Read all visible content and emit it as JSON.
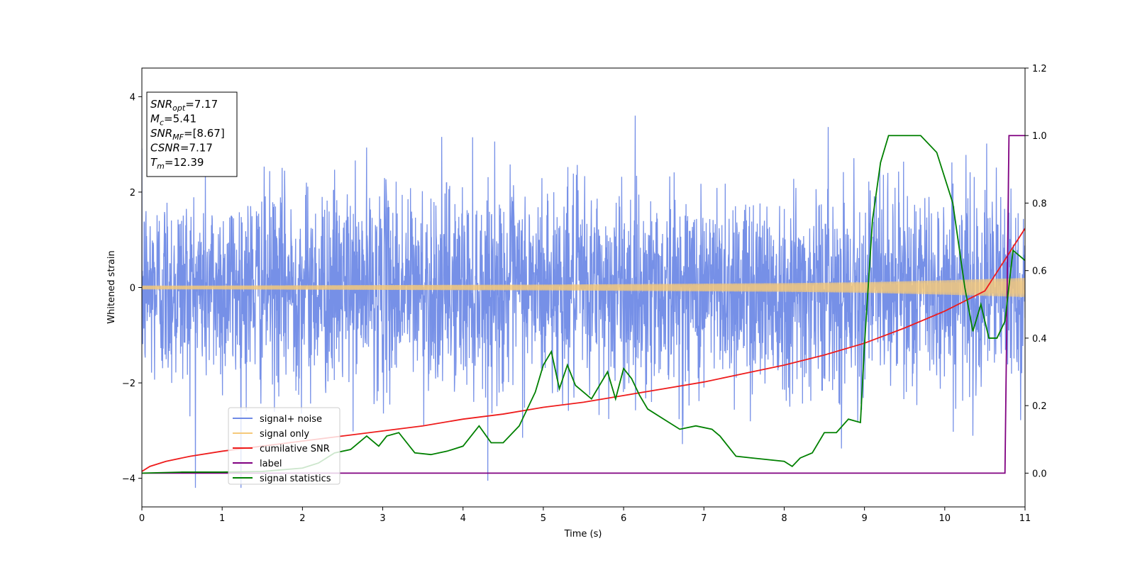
{
  "chart_data": {
    "type": "line",
    "title": "",
    "xlabel": "Time (s)",
    "ylabel": "Whitened strain",
    "y2label": "",
    "xlim": [
      0,
      11
    ],
    "ylim": [
      -4.6,
      4.6
    ],
    "y2lim": [
      -0.1,
      1.2
    ],
    "xticks": [
      "0",
      "1",
      "2",
      "3",
      "4",
      "5",
      "6",
      "7",
      "8",
      "9",
      "10",
      "11"
    ],
    "yticks": [
      "4",
      "2",
      "0",
      "−2",
      "−4"
    ],
    "y2ticks": [
      "1.2",
      "1.0",
      "0.8",
      "0.6",
      "0.4",
      "0.2",
      "0.0"
    ],
    "grid": false,
    "legend_position": "lower-left",
    "annotation": {
      "lines": [
        {
          "main": "SNR",
          "sub": "opt",
          "value": "=7.17"
        },
        {
          "main": "M",
          "sub": "c",
          "value": "=5.41"
        },
        {
          "main": "SNR",
          "sub": "MF",
          "value": "=[8.67]"
        },
        {
          "main": "CSNR",
          "sub": "",
          "value": "=7.17"
        },
        {
          "main": "T",
          "sub": "m",
          "value": "=12.39"
        }
      ]
    },
    "series": [
      {
        "name": "signal+ noise",
        "axis": "left",
        "color": "#6f8ae6",
        "kind": "noise",
        "std": 1.0,
        "x_range": [
          0,
          11
        ]
      },
      {
        "name": "signal only",
        "axis": "left",
        "color": "#f5c97a",
        "kind": "chirp-band",
        "x": [
          0,
          1,
          2,
          3,
          4,
          5,
          6,
          7,
          8,
          9,
          10,
          11
        ],
        "amplitude": [
          0.04,
          0.04,
          0.045,
          0.05,
          0.055,
          0.06,
          0.07,
          0.08,
          0.09,
          0.11,
          0.15,
          0.2
        ]
      },
      {
        "name": "cumilative SNR",
        "axis": "right",
        "color": "#ee1c1c",
        "x": [
          0,
          0.1,
          0.3,
          0.6,
          1,
          1.5,
          2,
          2.5,
          3,
          3.5,
          4,
          4.5,
          5,
          5.5,
          6,
          6.5,
          7,
          7.5,
          8,
          8.5,
          9,
          9.5,
          10,
          10.5,
          11
        ],
        "y": [
          0.005,
          0.02,
          0.035,
          0.05,
          0.065,
          0.08,
          0.095,
          0.11,
          0.125,
          0.14,
          0.16,
          0.175,
          0.195,
          0.21,
          0.23,
          0.25,
          0.27,
          0.295,
          0.32,
          0.35,
          0.385,
          0.43,
          0.48,
          0.54,
          0.725
        ]
      },
      {
        "name": "label",
        "axis": "right",
        "color": "#800080",
        "x": [
          0,
          10.75,
          10.8,
          11
        ],
        "y": [
          0,
          0,
          1.0,
          1.0
        ]
      },
      {
        "name": "signal statistics",
        "axis": "right",
        "color": "#008000",
        "x": [
          0,
          0.5,
          1,
          1.5,
          2,
          2.2,
          2.4,
          2.6,
          2.8,
          2.95,
          3.05,
          3.2,
          3.4,
          3.6,
          3.8,
          4.0,
          4.2,
          4.35,
          4.5,
          4.7,
          4.9,
          5.0,
          5.1,
          5.2,
          5.3,
          5.4,
          5.5,
          5.6,
          5.8,
          5.9,
          6.0,
          6.1,
          6.2,
          6.3,
          6.5,
          6.7,
          6.9,
          7.1,
          7.2,
          7.4,
          7.6,
          7.8,
          8.0,
          8.1,
          8.2,
          8.35,
          8.5,
          8.65,
          8.8,
          8.95,
          9.0,
          9.1,
          9.2,
          9.3,
          9.5,
          9.7,
          9.9,
          10.1,
          10.25,
          10.35,
          10.45,
          10.55,
          10.65,
          10.75,
          10.85,
          11.0
        ],
        "y": [
          0,
          0.003,
          0.003,
          0.005,
          0.015,
          0.03,
          0.06,
          0.07,
          0.11,
          0.08,
          0.11,
          0.12,
          0.06,
          0.055,
          0.065,
          0.08,
          0.14,
          0.09,
          0.09,
          0.14,
          0.24,
          0.32,
          0.36,
          0.25,
          0.32,
          0.26,
          0.24,
          0.22,
          0.3,
          0.22,
          0.31,
          0.28,
          0.23,
          0.19,
          0.16,
          0.13,
          0.14,
          0.13,
          0.11,
          0.05,
          0.045,
          0.04,
          0.035,
          0.02,
          0.045,
          0.06,
          0.12,
          0.12,
          0.16,
          0.15,
          0.38,
          0.75,
          0.92,
          1.0,
          1.0,
          1.0,
          0.95,
          0.8,
          0.55,
          0.42,
          0.5,
          0.4,
          0.4,
          0.45,
          0.66,
          0.63
        ]
      }
    ]
  }
}
